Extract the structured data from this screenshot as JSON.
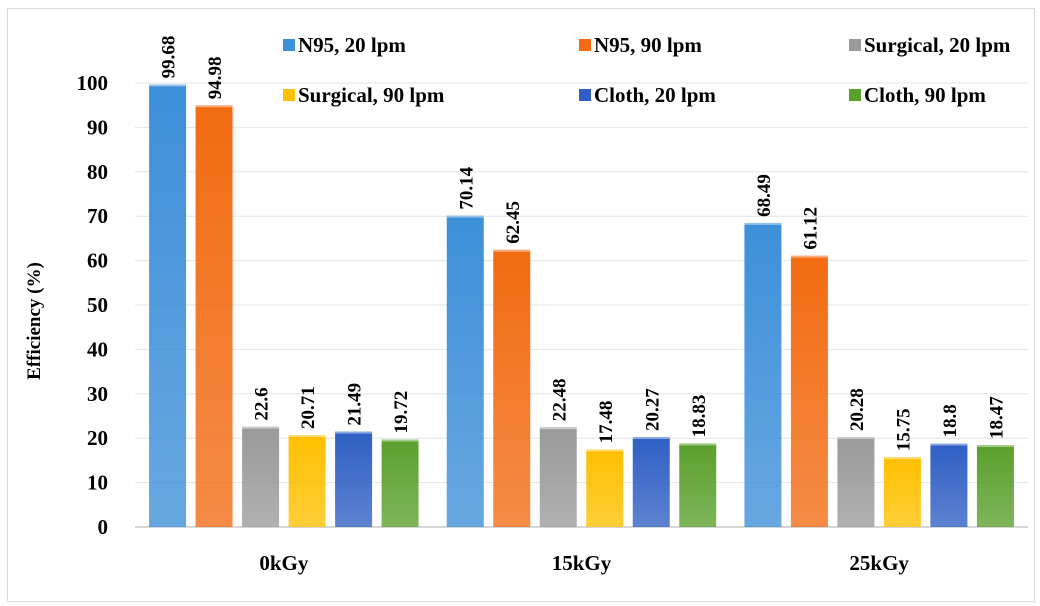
{
  "chart_data": {
    "type": "bar",
    "title": "",
    "xlabel": "",
    "ylabel": "Efficiency (%)",
    "ylim": [
      0,
      100
    ],
    "yticks": [
      0,
      10,
      20,
      30,
      40,
      50,
      60,
      70,
      80,
      90,
      100
    ],
    "grid": true,
    "legend_position": "top",
    "categories": [
      "0kGy",
      "15kGy",
      "25kGy"
    ],
    "series": [
      {
        "name": "N95, 20 lpm",
        "values": [
          99.68,
          70.14,
          68.49
        ],
        "color": "#3d8fd9"
      },
      {
        "name": "N95, 90 lpm",
        "values": [
          94.98,
          62.45,
          61.12
        ],
        "color": "#f26b12"
      },
      {
        "name": "Surgical, 20 lpm",
        "values": [
          22.6,
          22.48,
          20.28
        ],
        "color": "#9a9a9a"
      },
      {
        "name": "Surgical, 90 lpm",
        "values": [
          20.71,
          17.48,
          15.75
        ],
        "color": "#ffc000"
      },
      {
        "name": "Cloth, 20 lpm",
        "values": [
          21.49,
          20.27,
          18.8
        ],
        "color": "#2f5fc4"
      },
      {
        "name": "Cloth, 90 lpm",
        "values": [
          19.72,
          18.83,
          18.47
        ],
        "color": "#5aa02c"
      }
    ]
  }
}
